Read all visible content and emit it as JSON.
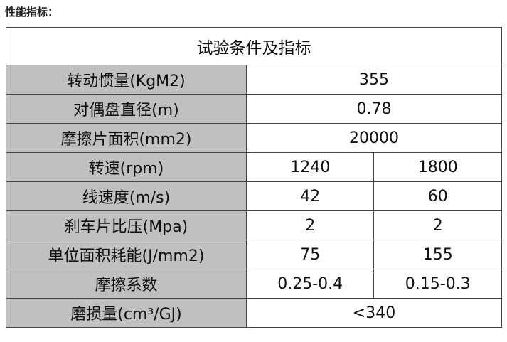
{
  "heading": "性能指标：",
  "table": {
    "title": "试验条件及指标",
    "rows": [
      {
        "label": "转动惯量(KgM2)",
        "values": [
          "355"
        ]
      },
      {
        "label": "对偶盘直径(m)",
        "values": [
          "0.78"
        ]
      },
      {
        "label": "摩擦片面积(mm2)",
        "values": [
          "20000"
        ]
      },
      {
        "label": "转速(rpm)",
        "values": [
          "1240",
          "1800"
        ]
      },
      {
        "label": "线速度(m/s)",
        "values": [
          "42",
          "60"
        ]
      },
      {
        "label": "刹车片比压(Mpa)",
        "values": [
          "2",
          "2"
        ]
      },
      {
        "label": "单位面积耗能(J/mm2)",
        "values": [
          "75",
          "155"
        ]
      },
      {
        "label": "摩擦系数",
        "values": [
          "0.25-0.4",
          "0.15-0.3"
        ]
      },
      {
        "label": "磨损量(cm³/GJ)",
        "values": [
          "<340"
        ]
      }
    ]
  },
  "colors": {
    "label_bg": "#c0c0c0",
    "border": "#444444"
  }
}
